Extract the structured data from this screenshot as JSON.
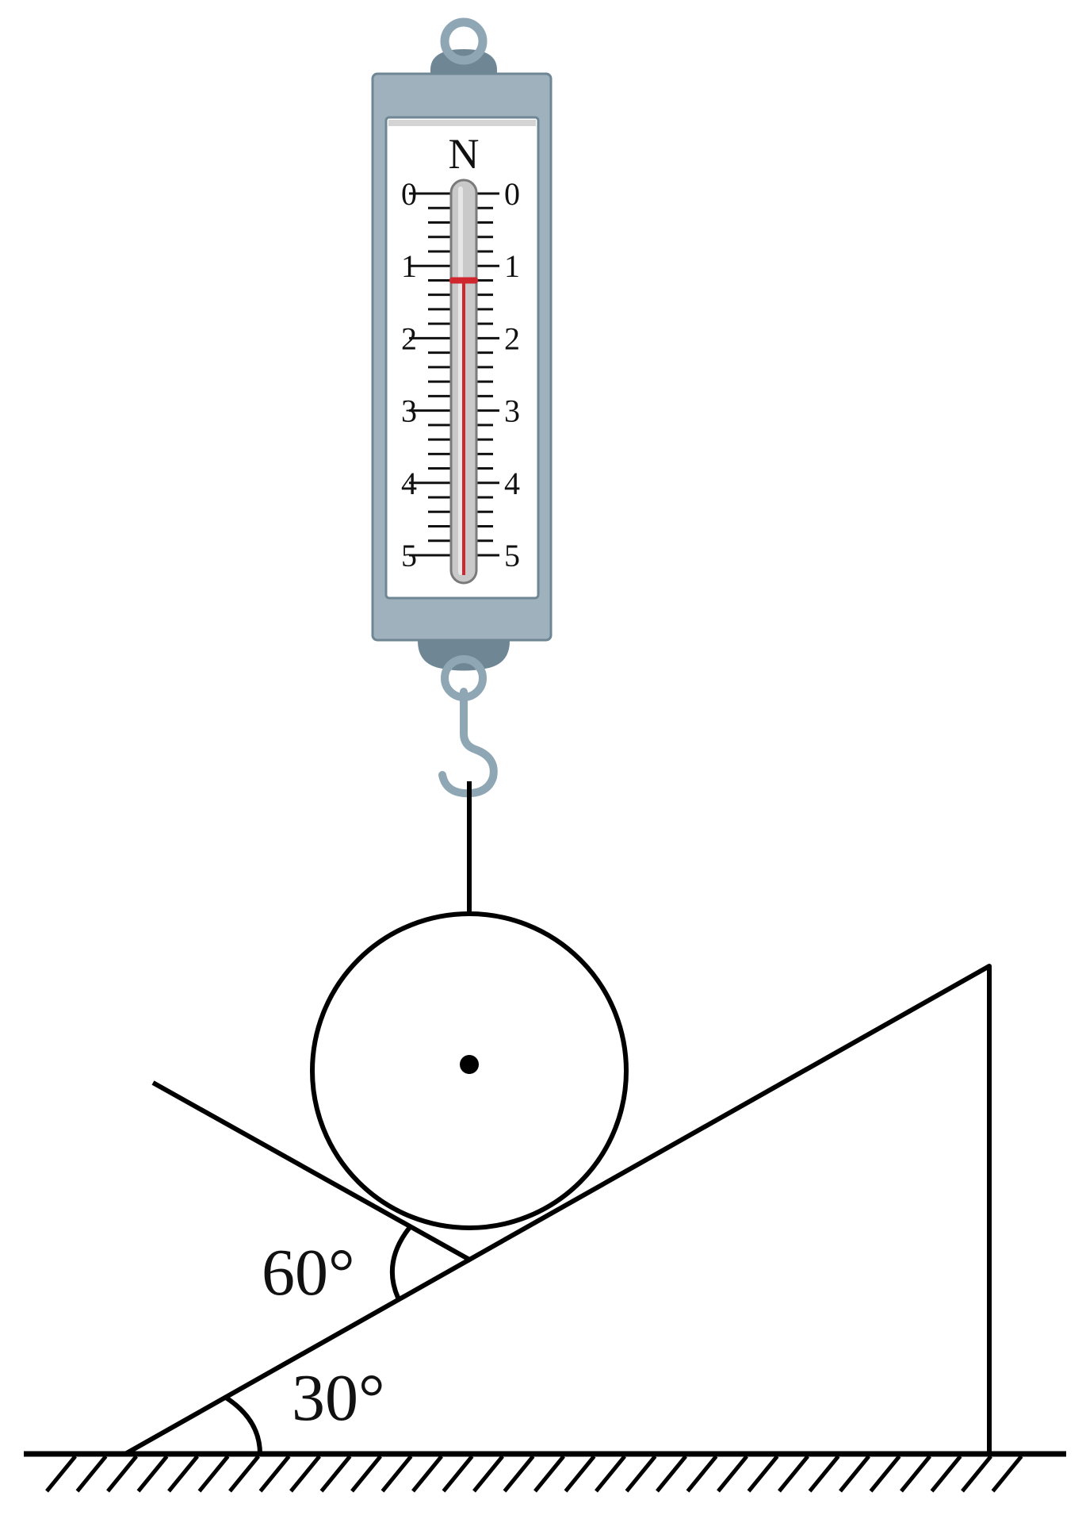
{
  "spring_scale": {
    "unit": "N",
    "left_labels": [
      "0",
      "1",
      "2",
      "3",
      "4",
      "5"
    ],
    "right_labels": [
      "0",
      "1",
      "2",
      "3",
      "4",
      "5"
    ],
    "max_value": 5,
    "minor_divisions": 5,
    "reading": 1.2
  },
  "angles": {
    "upper": "60°",
    "lower": "30°"
  },
  "colors": {
    "casing": "#9fb1bc",
    "casing_dark": "#6f8795",
    "indicator": "#d0262e",
    "line": "#000000"
  }
}
